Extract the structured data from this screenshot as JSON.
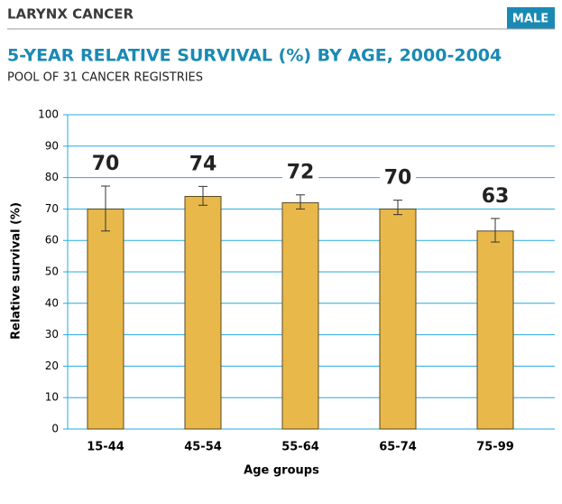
{
  "header": "LARYNX CANCER",
  "badge": "MALE",
  "chart_data": {
    "type": "bar",
    "title": "5-YEAR RELATIVE SURVIVAL (%) BY AGE, 2000-2004",
    "subtitle": "POOL OF 31 CANCER REGISTRIES",
    "x_label": "Age groups",
    "y_label": "Relative survival (%)",
    "categories": [
      "15-44",
      "45-54",
      "55-64",
      "65-74",
      "75-99"
    ],
    "values": [
      70,
      74,
      72,
      70,
      63
    ],
    "ci_low": [
      63,
      71.2,
      70,
      68.2,
      59.5
    ],
    "ci_high": [
      77.3,
      77.2,
      74.5,
      72.8,
      67
    ],
    "color": "#e8b84a",
    "ylim": [
      0,
      100
    ],
    "yticks": [
      0,
      10,
      20,
      30,
      40,
      50,
      60,
      70,
      80,
      90,
      100
    ],
    "grid": true
  }
}
